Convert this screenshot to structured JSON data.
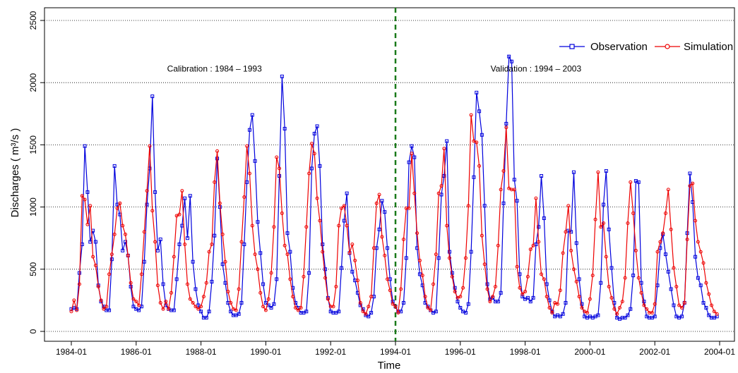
{
  "chart_data": {
    "type": "line",
    "xlabel": "Time",
    "ylabel": "Discharges ( m³/s )",
    "ylim": [
      0,
      2500
    ],
    "yticks": [
      0,
      500,
      1000,
      1500,
      2000,
      2500
    ],
    "xlim": [
      "1984-01",
      "2004-01"
    ],
    "xticks": [
      "1984-01",
      "1986-01",
      "1988-01",
      "1990-01",
      "1992-01",
      "1994-01",
      "1996-01",
      "1998-01",
      "2000-01",
      "2002-01",
      "2004-01"
    ],
    "grid": "horizontal dotted lines at y ticks",
    "legend": "top-right",
    "divider": {
      "x": "1994-01",
      "style": "dashed",
      "color": "#1a7a1a"
    },
    "annotations": [
      {
        "text": "Calibration : 1984 – 1993",
        "x": "1988-06",
        "y": 2090
      },
      {
        "text": "Validation : 1994 – 2003",
        "x": "1998-05",
        "y": 2090
      }
    ],
    "peaks_reference": "Monthly values 1984-01..2003-12",
    "series": [
      {
        "name": "Observation",
        "color": "#0000dd",
        "marker": "square",
        "values": [
          180,
          190,
          180,
          470,
          700,
          1490,
          1120,
          720,
          810,
          720,
          370,
          240,
          200,
          170,
          170,
          580,
          1330,
          1020,
          940,
          650,
          720,
          610,
          360,
          200,
          180,
          170,
          200,
          560,
          1020,
          1310,
          1890,
          1120,
          650,
          740,
          380,
          210,
          180,
          170,
          170,
          420,
          700,
          850,
          1070,
          750,
          1090,
          560,
          340,
          210,
          160,
          110,
          110,
          160,
          400,
          770,
          1390,
          1000,
          540,
          390,
          230,
          160,
          130,
          130,
          140,
          230,
          700,
          1200,
          1620,
          1740,
          1370,
          880,
          630,
          380,
          230,
          210,
          190,
          220,
          420,
          1250,
          2050,
          1630,
          790,
          640,
          350,
          230,
          190,
          150,
          150,
          160,
          470,
          1310,
          1590,
          1650,
          1330,
          700,
          500,
          270,
          160,
          150,
          150,
          160,
          510,
          890,
          1110,
          630,
          480,
          410,
          310,
          210,
          180,
          130,
          120,
          150,
          280,
          670,
          820,
          1050,
          960,
          670,
          420,
          240,
          200,
          160,
          160,
          230,
          590,
          1360,
          1490,
          1400,
          670,
          460,
          370,
          230,
          200,
          170,
          150,
          160,
          590,
          1100,
          1250,
          1530,
          640,
          470,
          350,
          240,
          190,
          160,
          150,
          220,
          640,
          1240,
          1920,
          1770,
          1580,
          1010,
          380,
          260,
          270,
          240,
          240,
          310,
          1030,
          1670,
          2210,
          2170,
          1220,
          1050,
          460,
          280,
          260,
          270,
          240,
          270,
          700,
          840,
          1250,
          910,
          380,
          250,
          160,
          120,
          130,
          120,
          140,
          230,
          810,
          800,
          1280,
          710,
          420,
          220,
          120,
          110,
          120,
          110,
          120,
          130,
          390,
          1020,
          1290,
          820,
          510,
          230,
          110,
          100,
          110,
          110,
          130,
          180,
          450,
          1210,
          1200,
          390,
          240,
          120,
          110,
          110,
          120,
          370,
          670,
          780,
          620,
          480,
          340,
          210,
          120,
          110,
          120,
          230,
          790,
          1270,
          1040,
          600,
          430,
          370,
          230,
          190,
          130,
          110,
          110,
          120
        ]
      },
      {
        "name": "Simulation",
        "color": "#ee0000",
        "marker": "circle",
        "values": [
          160,
          250,
          170,
          380,
          1090,
          1060,
          860,
          1010,
          600,
          530,
          360,
          250,
          180,
          200,
          460,
          620,
          780,
          990,
          1030,
          850,
          780,
          610,
          390,
          260,
          240,
          210,
          460,
          800,
          1130,
          1490,
          970,
          720,
          370,
          230,
          180,
          240,
          180,
          310,
          600,
          930,
          940,
          1130,
          700,
          380,
          260,
          230,
          200,
          180,
          200,
          280,
          390,
          640,
          700,
          1200,
          1450,
          1030,
          780,
          560,
          320,
          230,
          180,
          170,
          340,
          720,
          1080,
          1490,
          1270,
          850,
          620,
          500,
          310,
          200,
          170,
          260,
          470,
          840,
          1400,
          1310,
          950,
          690,
          620,
          420,
          280,
          190,
          170,
          190,
          440,
          840,
          1270,
          1510,
          1430,
          1070,
          890,
          640,
          430,
          260,
          200,
          200,
          360,
          850,
          990,
          1010,
          850,
          630,
          700,
          570,
          410,
          230,
          160,
          140,
          200,
          280,
          670,
          1030,
          1100,
          760,
          610,
          420,
          330,
          220,
          200,
          150,
          340,
          740,
          990,
          990,
          1430,
          1110,
          790,
          570,
          450,
          280,
          190,
          170,
          380,
          620,
          1110,
          1170,
          1470,
          850,
          590,
          440,
          320,
          270,
          280,
          350,
          590,
          1010,
          1740,
          1530,
          1520,
          1330,
          770,
          540,
          340,
          240,
          280,
          360,
          690,
          1140,
          1290,
          1640,
          1150,
          1140,
          1140,
          520,
          350,
          300,
          320,
          440,
          660,
          690,
          1070,
          720,
          460,
          420,
          280,
          190,
          150,
          230,
          220,
          330,
          630,
          800,
          1010,
          650,
          500,
          400,
          280,
          190,
          160,
          150,
          260,
          450,
          900,
          1280,
          840,
          870,
          600,
          360,
          270,
          180,
          140,
          190,
          240,
          430,
          870,
          1200,
          950,
          650,
          430,
          310,
          210,
          180,
          150,
          150,
          220,
          640,
          720,
          790,
          950,
          1140,
          820,
          510,
          360,
          210,
          190,
          230,
          740,
          1170,
          1190,
          890,
          720,
          640,
          550,
          390,
          300,
          210,
          160,
          140
        ]
      }
    ]
  }
}
